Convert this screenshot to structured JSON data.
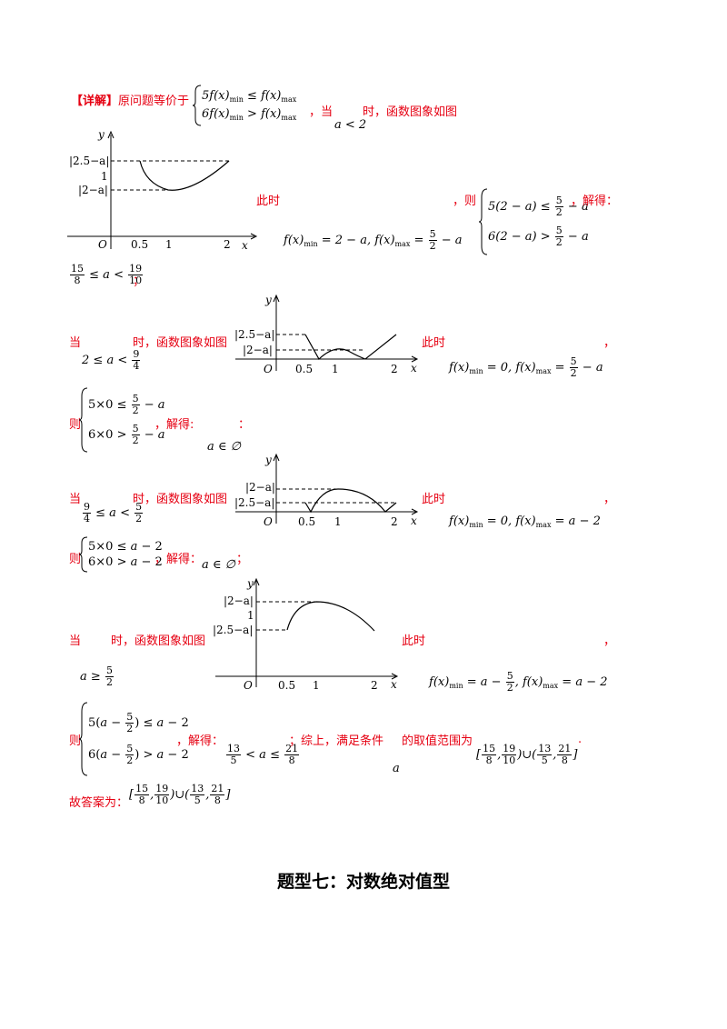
{
  "intro": {
    "tag": "【详解】",
    "text": "原问题等价于",
    "when": "，当",
    "after": "时，函数图象如图"
  },
  "cases": {
    "c1_cond": "a < 2",
    "c2_cond": "2 ≤ a < 9/4",
    "c3_cond": "9/4 ≤ a < 5/2",
    "c4_cond": "a ≥ 5/2"
  },
  "labels": {
    "dang": "当",
    "shi_graph": "时，函数图象如图",
    "cishi": "此时",
    "ze": "则",
    "comma_ze": "，则",
    "jiede": "，解得：",
    "jiede2": "，解得:",
    "semi": "；",
    "colon": "：",
    "comma": "，",
    "summary": "；综上，满足条件",
    "range_text": "的取值范围为",
    "answer": "故答案为：",
    "period": "."
  },
  "graph1": {
    "y": "y",
    "x": "x",
    "o": "O",
    "t1": "0.5",
    "t2": "1",
    "t3": "2",
    "l1": "|2.5−a|",
    "l2": "1",
    "l3": "|2−a|"
  },
  "graph2": {
    "y": "y",
    "x": "x",
    "o": "O",
    "t1": "0.5",
    "t2": "1",
    "t3": "2",
    "l1": "|2.5−a|",
    "l2": "|2−a|"
  },
  "graph3": {
    "y": "y",
    "x": "x",
    "o": "O",
    "t1": "0.5",
    "t2": "1",
    "t3": "2",
    "l1": "|2−a|",
    "l2": "|2.5−a|"
  },
  "graph4": {
    "y": "y",
    "x": "x",
    "o": "O",
    "t1": "0.5",
    "t2": "1",
    "t3": "2",
    "l1": "|2−a|",
    "l2": "1",
    "l3": "|2.5−a|"
  },
  "section_title": "题型七：对数绝对值型"
}
